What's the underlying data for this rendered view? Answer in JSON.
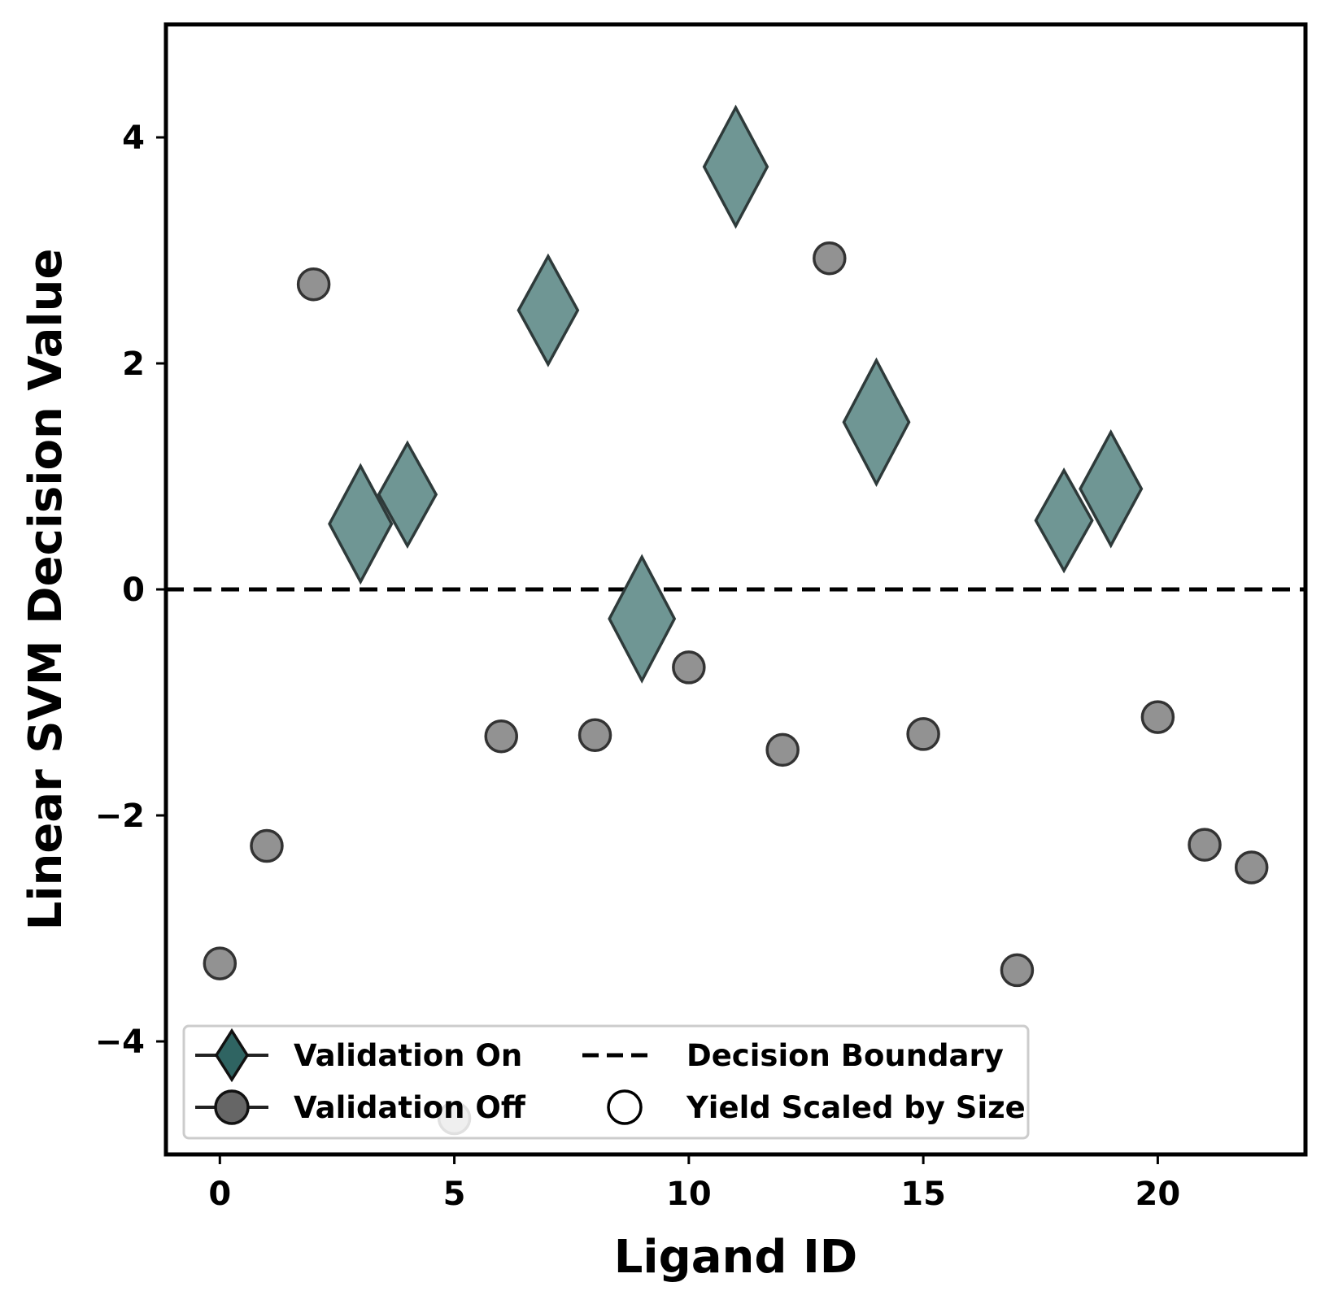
{
  "chart_data": {
    "type": "scatter",
    "xlabel": "Ligand ID",
    "ylabel": "Linear SVM Decision Value",
    "xlim": [
      -1.15,
      23.15
    ],
    "ylim": [
      -5.0,
      5.0
    ],
    "xticks": [
      0,
      5,
      10,
      15,
      20
    ],
    "yticks": [
      -4,
      -2,
      0,
      2,
      4
    ],
    "ytick_labels": [
      "−4",
      "−2",
      "0",
      "2",
      "4"
    ],
    "grid": false,
    "decision_boundary": 0,
    "legend": {
      "placement": "lower-left",
      "entries": [
        {
          "label": "Validation On",
          "marker": "diamond",
          "color": "#2f6462"
        },
        {
          "label": "Decision Boundary",
          "marker": "dashed-line",
          "color": "#000000"
        },
        {
          "label": "Validation Off",
          "marker": "circle",
          "color": "#666666"
        },
        {
          "label": "Yield Scaled by Size",
          "marker": "hollow-circle",
          "color": "#000000"
        }
      ]
    },
    "series": [
      {
        "name": "Validation On",
        "marker": "diamond",
        "color": "#6f9694",
        "edge_color": "#2e3a3a",
        "points": [
          {
            "x": 3,
            "y": 0.58,
            "yield": 0.85
          },
          {
            "x": 4,
            "y": 0.84,
            "yield": 0.6
          },
          {
            "x": 7,
            "y": 2.47,
            "yield": 0.7
          },
          {
            "x": 9,
            "y": -0.26,
            "yield": 1.0
          },
          {
            "x": 11,
            "y": 3.74,
            "yield": 0.9
          },
          {
            "x": 14,
            "y": 1.48,
            "yield": 1.0
          },
          {
            "x": 18,
            "y": 0.61,
            "yield": 0.55
          },
          {
            "x": 19,
            "y": 0.89,
            "yield": 0.8
          }
        ]
      },
      {
        "name": "Validation Off",
        "marker": "circle",
        "color": "#8c8c8c",
        "edge_color": "#333333",
        "points": [
          {
            "x": 0,
            "y": -3.31
          },
          {
            "x": 1,
            "y": -2.27
          },
          {
            "x": 2,
            "y": 2.7
          },
          {
            "x": 5,
            "y": -4.68
          },
          {
            "x": 6,
            "y": -1.3
          },
          {
            "x": 8,
            "y": -1.29
          },
          {
            "x": 10,
            "y": -0.69
          },
          {
            "x": 12,
            "y": -1.42
          },
          {
            "x": 13,
            "y": 2.93
          },
          {
            "x": 15,
            "y": -1.28
          },
          {
            "x": 17,
            "y": -3.37
          },
          {
            "x": 20,
            "y": -1.13
          },
          {
            "x": 21,
            "y": -2.26
          },
          {
            "x": 22,
            "y": -2.46
          }
        ]
      }
    ]
  }
}
